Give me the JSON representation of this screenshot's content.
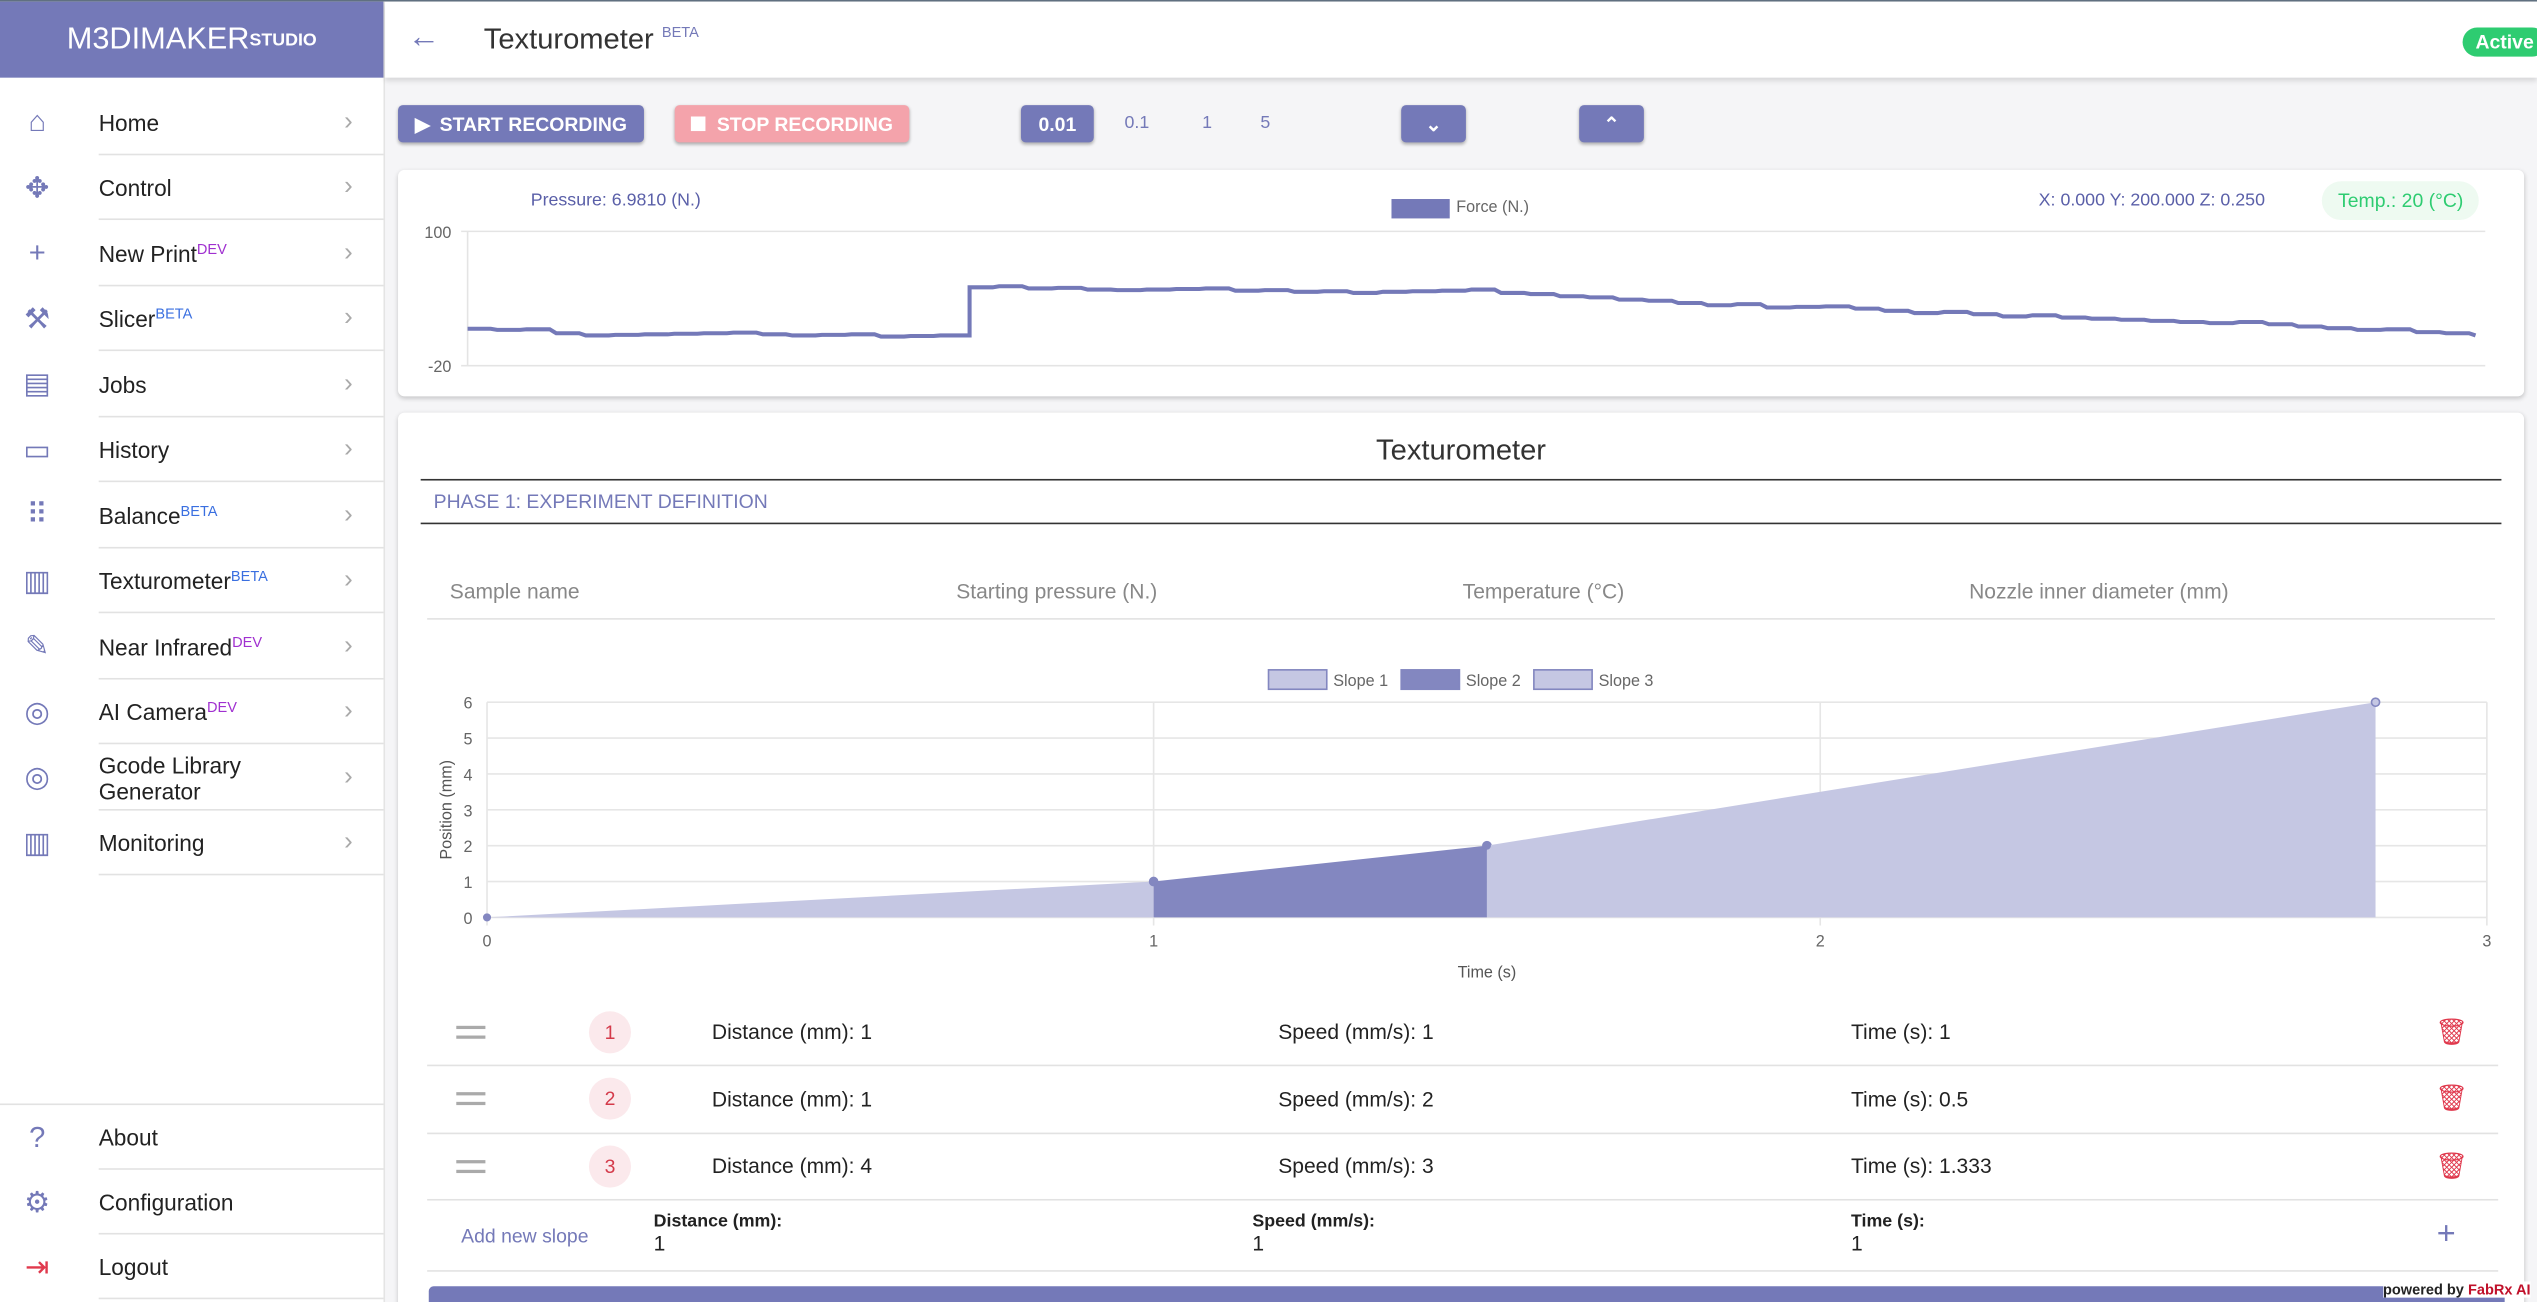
{
  "brand": {
    "name": "M3DIMAKER",
    "sup": "STUDIO"
  },
  "sidebar": {
    "items": [
      {
        "label": "Home",
        "icon": "home-icon",
        "glyph": "⌂"
      },
      {
        "label": "Control",
        "icon": "move-icon",
        "glyph": "✥"
      },
      {
        "label": "New Print",
        "badge": "DEV",
        "icon": "plus-icon",
        "glyph": "+"
      },
      {
        "label": "Slicer",
        "badge": "BETA",
        "icon": "tools-icon",
        "glyph": "⚒"
      },
      {
        "label": "Jobs",
        "icon": "document-icon",
        "glyph": "▤"
      },
      {
        "label": "History",
        "icon": "inbox-icon",
        "glyph": "▭"
      },
      {
        "label": "Balance",
        "badge": "BETA",
        "icon": "grid-dots-icon",
        "glyph": "⠿"
      },
      {
        "label": "Texturometer",
        "badge": "BETA",
        "icon": "bar-chart-icon",
        "glyph": "▥"
      },
      {
        "label": "Near Infrared",
        "badge": "DEV",
        "icon": "flashlight-icon",
        "glyph": "✎"
      },
      {
        "label": "AI Camera",
        "badge": "DEV",
        "icon": "aperture-icon",
        "glyph": "◎"
      },
      {
        "label": "Gcode Library Generator",
        "icon": "aperture-icon",
        "glyph": "◎"
      },
      {
        "label": "Monitoring",
        "icon": "bar-chart-icon",
        "glyph": "▥"
      }
    ],
    "bottom": [
      {
        "label": "About",
        "icon": "question-icon",
        "glyph": "?"
      },
      {
        "label": "Configuration",
        "icon": "gear-icon",
        "glyph": "⚙"
      },
      {
        "label": "Logout",
        "icon": "logout-icon",
        "glyph": "⇥"
      }
    ]
  },
  "header": {
    "title": "Texturometer",
    "badge": "BETA",
    "status": "Active"
  },
  "toolbar": {
    "start": "START RECORDING",
    "stop": "STOP RECORDING",
    "steps": [
      "0.01",
      "0.1",
      "1",
      "5"
    ],
    "selected_step": "0.01"
  },
  "live": {
    "pressure": "Pressure: 6.9810 (N.)",
    "legend": "Force (N.)",
    "coords": "X: 0.000 Y: 200.000 Z: 0.250",
    "temp": "Temp.: 20 (°C)"
  },
  "panel": {
    "title": "Texturometer",
    "phase": "PHASE 1: EXPERIMENT DEFINITION",
    "fields": [
      "Sample name",
      "Starting pressure (N.)",
      "Temperature (°C)",
      "Nozzle inner diameter (mm)"
    ]
  },
  "slopes": [
    {
      "n": "1",
      "distance": "Distance (mm): 1",
      "speed": "Speed (mm/s): 1",
      "time": "Time (s): 1"
    },
    {
      "n": "2",
      "distance": "Distance (mm): 1",
      "speed": "Speed (mm/s): 2",
      "time": "Time (s): 0.5"
    },
    {
      "n": "3",
      "distance": "Distance (mm): 4",
      "speed": "Speed (mm/s): 3",
      "time": "Time (s): 1.333"
    }
  ],
  "new_slope": {
    "label": "Add new slope",
    "distance_label": "Distance (mm):",
    "distance": "1",
    "speed_label": "Speed (mm/s):",
    "speed": "1",
    "time_label": "Time (s):",
    "time": "1"
  },
  "footer": {
    "powered": "powered by",
    "brand": "FabRx AI"
  },
  "colors": {
    "accent": "#7479b8",
    "danger": "#f4a3ab",
    "success": "#2ecc71"
  },
  "chart_data": [
    {
      "type": "line",
      "title": "",
      "series": [
        {
          "name": "Force (N.)",
          "values": [
            13,
            12,
            12.5,
            9,
            7,
            7.5,
            8,
            8.5,
            9,
            9.5,
            8,
            7,
            7.5,
            8,
            6,
            6.5,
            7,
            50,
            51,
            49,
            49.5,
            48,
            47.5,
            48,
            48.5,
            49,
            47,
            47.5,
            46,
            46.5,
            45,
            46,
            46.5,
            47,
            48,
            45,
            44,
            42,
            41,
            39,
            38,
            36,
            34,
            35,
            32,
            32.5,
            33,
            31,
            29,
            27,
            28,
            26,
            24,
            25,
            23,
            22,
            21,
            20,
            19,
            18,
            19,
            17,
            15,
            13.5,
            12,
            12.5,
            10,
            9,
            7
          ]
        }
      ],
      "ylim": [
        -20,
        100
      ],
      "yticks": [
        "100",
        "-20"
      ]
    },
    {
      "type": "area",
      "xlabel": "Time (s)",
      "ylabel": "Position (mm)",
      "xlim": [
        0,
        3
      ],
      "ylim": [
        0,
        6
      ],
      "xticks": [
        "0",
        "1",
        "2",
        "3"
      ],
      "yticks": [
        "0",
        "1",
        "2",
        "3",
        "4",
        "5",
        "6"
      ],
      "series": [
        {
          "name": "Slope 1",
          "points": [
            [
              0,
              0
            ],
            [
              1,
              1
            ]
          ],
          "color": "#c5c7e3"
        },
        {
          "name": "Slope 2",
          "points": [
            [
              1,
              1
            ],
            [
              1.5,
              2
            ]
          ],
          "color": "#8387c0"
        },
        {
          "name": "Slope 3",
          "points": [
            [
              1.5,
              2
            ],
            [
              2.833,
              6
            ]
          ],
          "color": "#c5c7e3"
        }
      ]
    }
  ]
}
